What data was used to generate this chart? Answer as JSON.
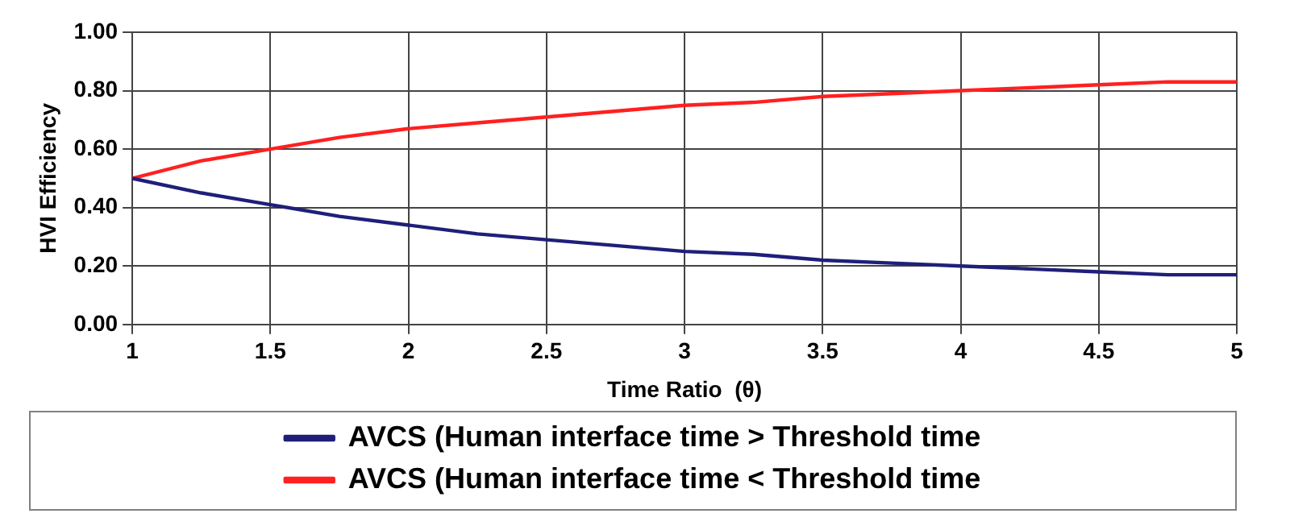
{
  "chart_data": {
    "type": "line",
    "xlabel": "Time Ratio  (θ)",
    "ylabel": "HVI Efficiency",
    "x": [
      1,
      1.25,
      1.5,
      1.75,
      2,
      2.25,
      2.5,
      2.75,
      3,
      3.25,
      3.5,
      3.75,
      4,
      4.25,
      4.5,
      4.75,
      5
    ],
    "series": [
      {
        "name": "AVCS (Human interface time > Threshold time",
        "color": "#1f1f7a",
        "values": [
          0.5,
          0.45,
          0.41,
          0.37,
          0.34,
          0.31,
          0.29,
          0.27,
          0.25,
          0.24,
          0.22,
          0.21,
          0.2,
          0.19,
          0.18,
          0.17,
          0.17
        ]
      },
      {
        "name": "AVCS (Human interface time < Threshold time",
        "color": "#ff2020",
        "values": [
          0.5,
          0.56,
          0.6,
          0.64,
          0.67,
          0.69,
          0.71,
          0.73,
          0.75,
          0.76,
          0.78,
          0.79,
          0.8,
          0.81,
          0.82,
          0.83,
          0.83
        ]
      }
    ],
    "xlim": [
      1,
      5
    ],
    "xticks": [
      1,
      1.5,
      2,
      2.5,
      3,
      3.5,
      4,
      4.5,
      5
    ],
    "ylim": [
      0,
      1
    ],
    "yticks": [
      {
        "value": 0,
        "label": "0.00"
      },
      {
        "value": 0.2,
        "label": "0.20"
      },
      {
        "value": 0.4,
        "label": "0.40"
      },
      {
        "value": 0.6,
        "label": "0.60"
      },
      {
        "value": 0.8,
        "label": "0.80"
      },
      {
        "value": 1,
        "label": "1.00"
      }
    ],
    "grid": true,
    "legend": "bottom",
    "marker": "none",
    "line_style": "solid"
  }
}
